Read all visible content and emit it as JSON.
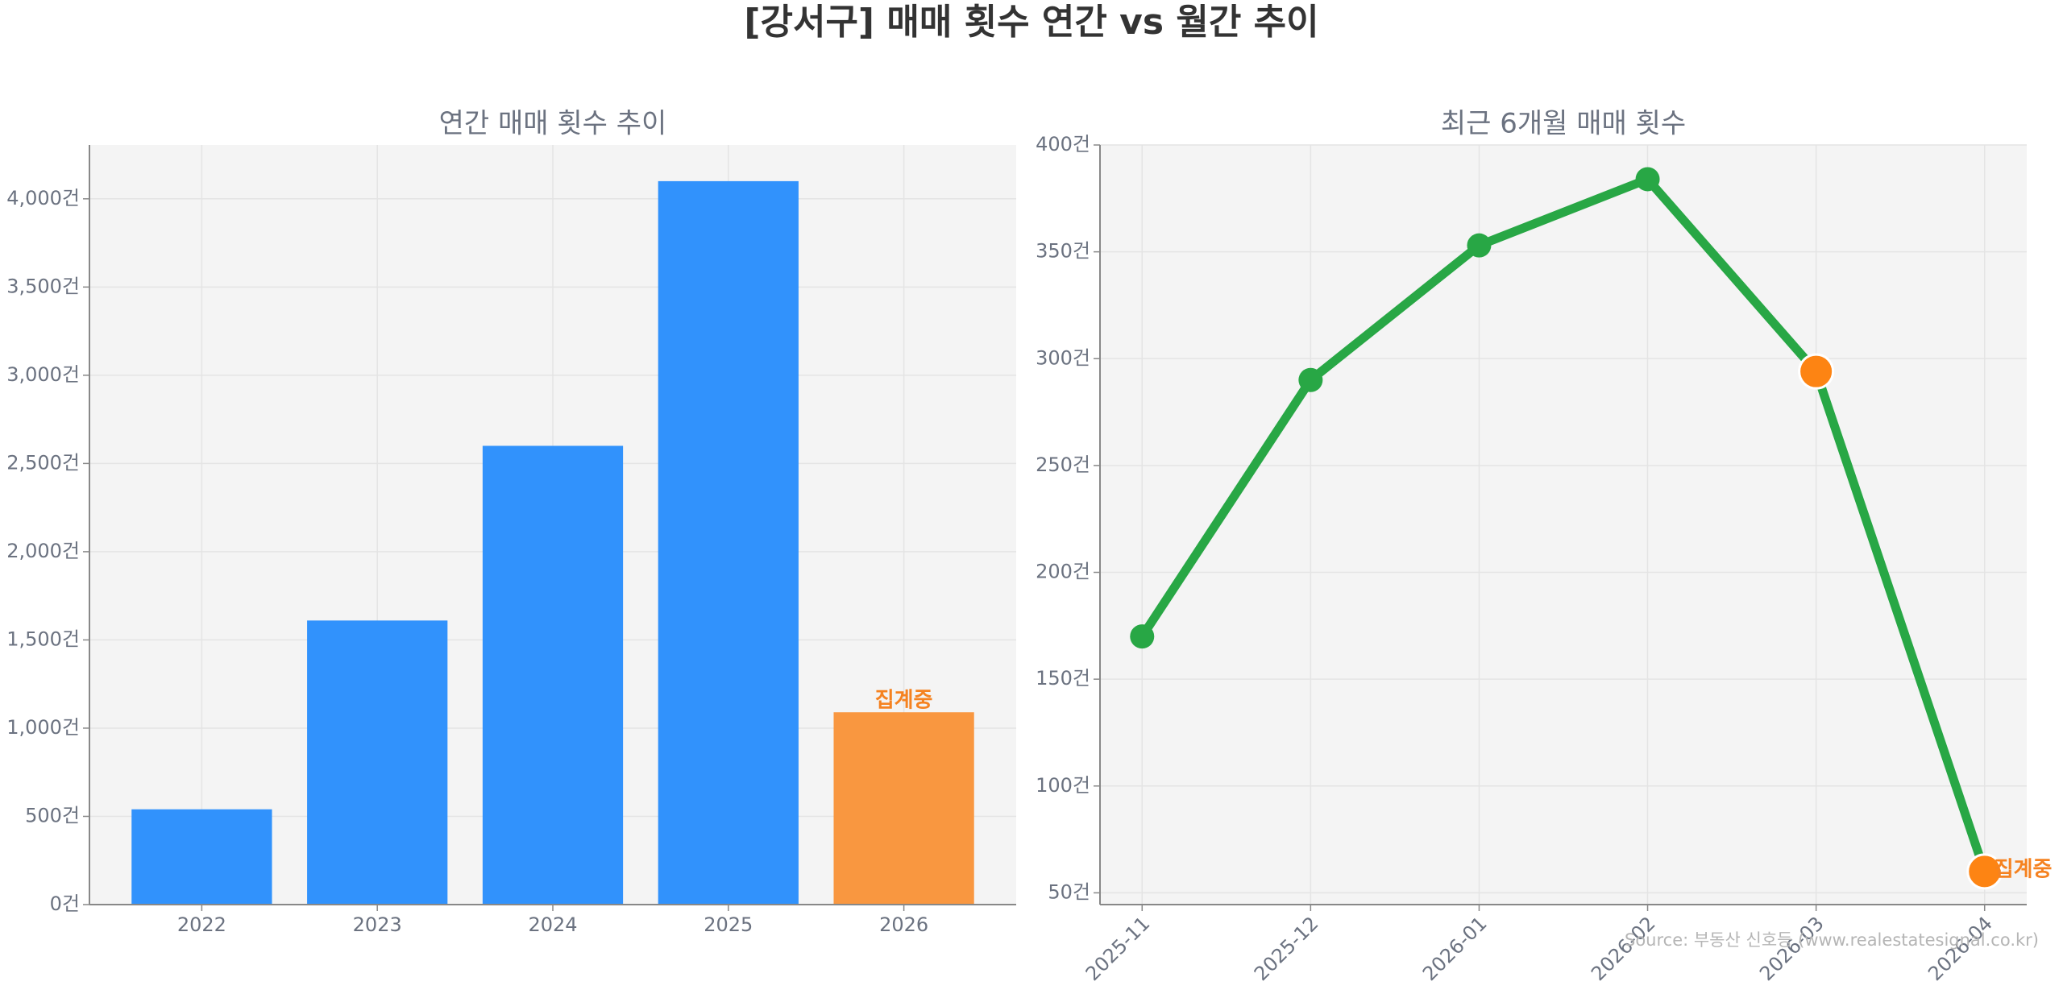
{
  "title": "[강서구] 매매 횟수 연간 vs 월간 추이",
  "source": "Source: 부동산 신호등 (www.realestatesignal.co.kr)",
  "chart_data": [
    {
      "type": "bar",
      "title": "연간 매매 횟수 추이",
      "categories": [
        "2022",
        "2023",
        "2024",
        "2025",
        "2026"
      ],
      "values": [
        540,
        1610,
        2600,
        4100,
        1090
      ],
      "colors": [
        "#3192fc",
        "#3192fc",
        "#3192fc",
        "#3192fc",
        "#f99740"
      ],
      "ylim": [
        0,
        4305
      ],
      "yticks": [
        {
          "value": 0,
          "label": "0건"
        },
        {
          "value": 500,
          "label": "500건"
        },
        {
          "value": 1000,
          "label": "1,000건"
        },
        {
          "value": 1500,
          "label": "1,500건"
        },
        {
          "value": 2000,
          "label": "2,000건"
        },
        {
          "value": 2500,
          "label": "2,500건"
        },
        {
          "value": 3000,
          "label": "3,000건"
        },
        {
          "value": 3500,
          "label": "3,500건"
        },
        {
          "value": 4000,
          "label": "4,000건"
        }
      ],
      "grid": true,
      "annotations": [
        {
          "text": "집계중",
          "category": "2026",
          "color": "#f58220"
        }
      ]
    },
    {
      "type": "line",
      "title": "최근 6개월 매매 횟수",
      "categories": [
        "2025-11",
        "2025-12",
        "2026-01",
        "2026-02",
        "2026-03",
        "2026-04"
      ],
      "values": [
        170,
        290,
        353,
        384,
        294,
        60
      ],
      "color": "#28a745",
      "marker_colors": [
        "#28a745",
        "#28a745",
        "#28a745",
        "#28a745",
        "#fd8413",
        "#fd8413"
      ],
      "ylim": [
        44.5,
        400
      ],
      "yticks": [
        {
          "value": 50,
          "label": "50건"
        },
        {
          "value": 100,
          "label": "100건"
        },
        {
          "value": 150,
          "label": "150건"
        },
        {
          "value": 200,
          "label": "200건"
        },
        {
          "value": 250,
          "label": "250건"
        },
        {
          "value": 300,
          "label": "300건"
        },
        {
          "value": 350,
          "label": "350건"
        },
        {
          "value": 400,
          "label": "400건"
        }
      ],
      "grid": true,
      "annotations": [
        {
          "text": "집계중",
          "category": "2026-04",
          "color": "#f58220"
        }
      ]
    }
  ]
}
